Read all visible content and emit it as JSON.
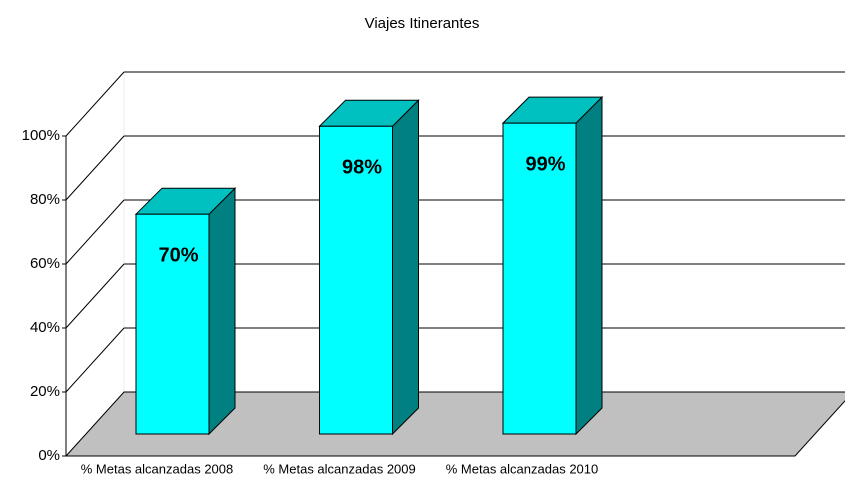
{
  "chart_data": {
    "type": "bar3d",
    "title": "Viajes Itinerantes",
    "categories": [
      "% Metas alcanzadas 2008",
      "% Metas alcanzadas 2009",
      "% Metas alcanzadas 2010"
    ],
    "values": [
      70,
      98,
      99
    ],
    "value_labels": [
      "70%",
      "98%",
      "99%"
    ],
    "color": "#00ffff",
    "ylim": [
      0,
      100
    ],
    "yticks": [
      {
        "value": 0,
        "label": "0%"
      },
      {
        "value": 20,
        "label": "20%"
      },
      {
        "value": 40,
        "label": "40%"
      },
      {
        "value": 60,
        "label": "60%"
      },
      {
        "value": 80,
        "label": "80%"
      },
      {
        "value": 100,
        "label": "100%"
      }
    ],
    "grid": true
  }
}
